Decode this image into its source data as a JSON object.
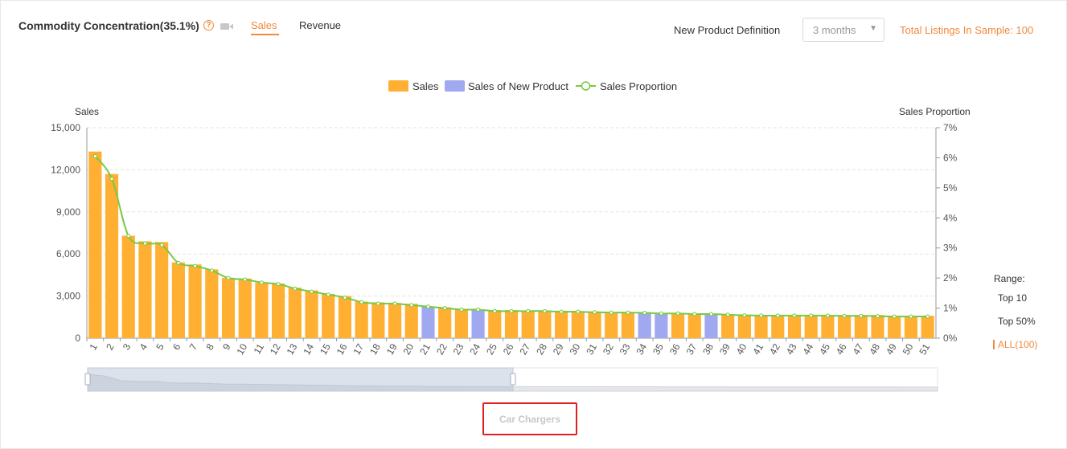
{
  "header": {
    "title": "Commodity Concentration(35.1%)",
    "tabs": [
      {
        "label": "Sales",
        "active": true
      },
      {
        "label": "Revenue",
        "active": false
      }
    ],
    "new_product_label": "New Product Definition",
    "new_product_value": "3 months",
    "total_listings": "Total Listings In Sample: 100"
  },
  "icons": {
    "help": "question-circle-icon",
    "video": "video-camera-icon"
  },
  "colors": {
    "accent": "#f08a3c",
    "sales": "#ffaf32",
    "new_product": "#a0a8f0",
    "proportion": "#7ac943"
  },
  "range": {
    "label": "Range:",
    "options": [
      "Top 10",
      "Top 50%",
      "ALL(100)"
    ],
    "selected": "ALL(100)"
  },
  "category": "Car Chargers",
  "chart_data": {
    "type": "bar",
    "legend": [
      "Sales",
      "Sales of New Product",
      "Sales Proportion"
    ],
    "legend_position": "top-center",
    "ylabel": "Sales",
    "y2label": "Sales Proportion",
    "ylim": [
      0,
      15000
    ],
    "y_ticks": [
      "0",
      "3,000",
      "6,000",
      "9,000",
      "12,000",
      "15,000"
    ],
    "y2lim": [
      0,
      7
    ],
    "y2_ticks": [
      "0%",
      "1%",
      "2%",
      "3%",
      "4%",
      "5%",
      "6%",
      "7%"
    ],
    "grid": true,
    "categories": [
      "1",
      "2",
      "3",
      "4",
      "5",
      "6",
      "7",
      "8",
      "9",
      "10",
      "11",
      "12",
      "13",
      "14",
      "15",
      "16",
      "17",
      "18",
      "19",
      "20",
      "21",
      "22",
      "23",
      "24",
      "25",
      "26",
      "27",
      "28",
      "29",
      "30",
      "31",
      "32",
      "33",
      "34",
      "35",
      "36",
      "37",
      "38",
      "39",
      "40",
      "41",
      "42",
      "43",
      "44",
      "45",
      "46",
      "47",
      "48",
      "49",
      "50",
      "51"
    ],
    "values": [
      13300,
      11700,
      7300,
      6900,
      6850,
      5400,
      5250,
      4900,
      4300,
      4250,
      3950,
      3900,
      3600,
      3400,
      3150,
      3000,
      2600,
      2550,
      2500,
      2450,
      2250,
      2200,
      2050,
      2050,
      2000,
      2000,
      1950,
      1950,
      1950,
      1900,
      1900,
      1850,
      1850,
      1850,
      1800,
      1800,
      1750,
      1750,
      1700,
      1650,
      1650,
      1650,
      1650,
      1650,
      1650,
      1650,
      1650,
      1650,
      1600,
      1600,
      1600
    ],
    "new_product": [
      false,
      false,
      false,
      false,
      false,
      false,
      false,
      false,
      false,
      false,
      false,
      false,
      false,
      false,
      false,
      false,
      false,
      false,
      false,
      false,
      true,
      false,
      false,
      true,
      false,
      false,
      false,
      false,
      false,
      false,
      false,
      false,
      false,
      true,
      true,
      false,
      false,
      true,
      false,
      false,
      false,
      false,
      false,
      false,
      false,
      false,
      false,
      false,
      false,
      false,
      false
    ],
    "proportion": [
      6.05,
      5.3,
      3.4,
      3.15,
      3.1,
      2.5,
      2.4,
      2.25,
      2.0,
      1.95,
      1.85,
      1.8,
      1.65,
      1.55,
      1.45,
      1.35,
      1.2,
      1.15,
      1.15,
      1.1,
      1.05,
      1.0,
      0.95,
      0.95,
      0.9,
      0.9,
      0.9,
      0.9,
      0.88,
      0.88,
      0.86,
      0.85,
      0.85,
      0.84,
      0.82,
      0.82,
      0.8,
      0.8,
      0.78,
      0.76,
      0.75,
      0.75,
      0.75,
      0.75,
      0.75,
      0.74,
      0.74,
      0.73,
      0.72,
      0.72,
      0.72
    ]
  }
}
